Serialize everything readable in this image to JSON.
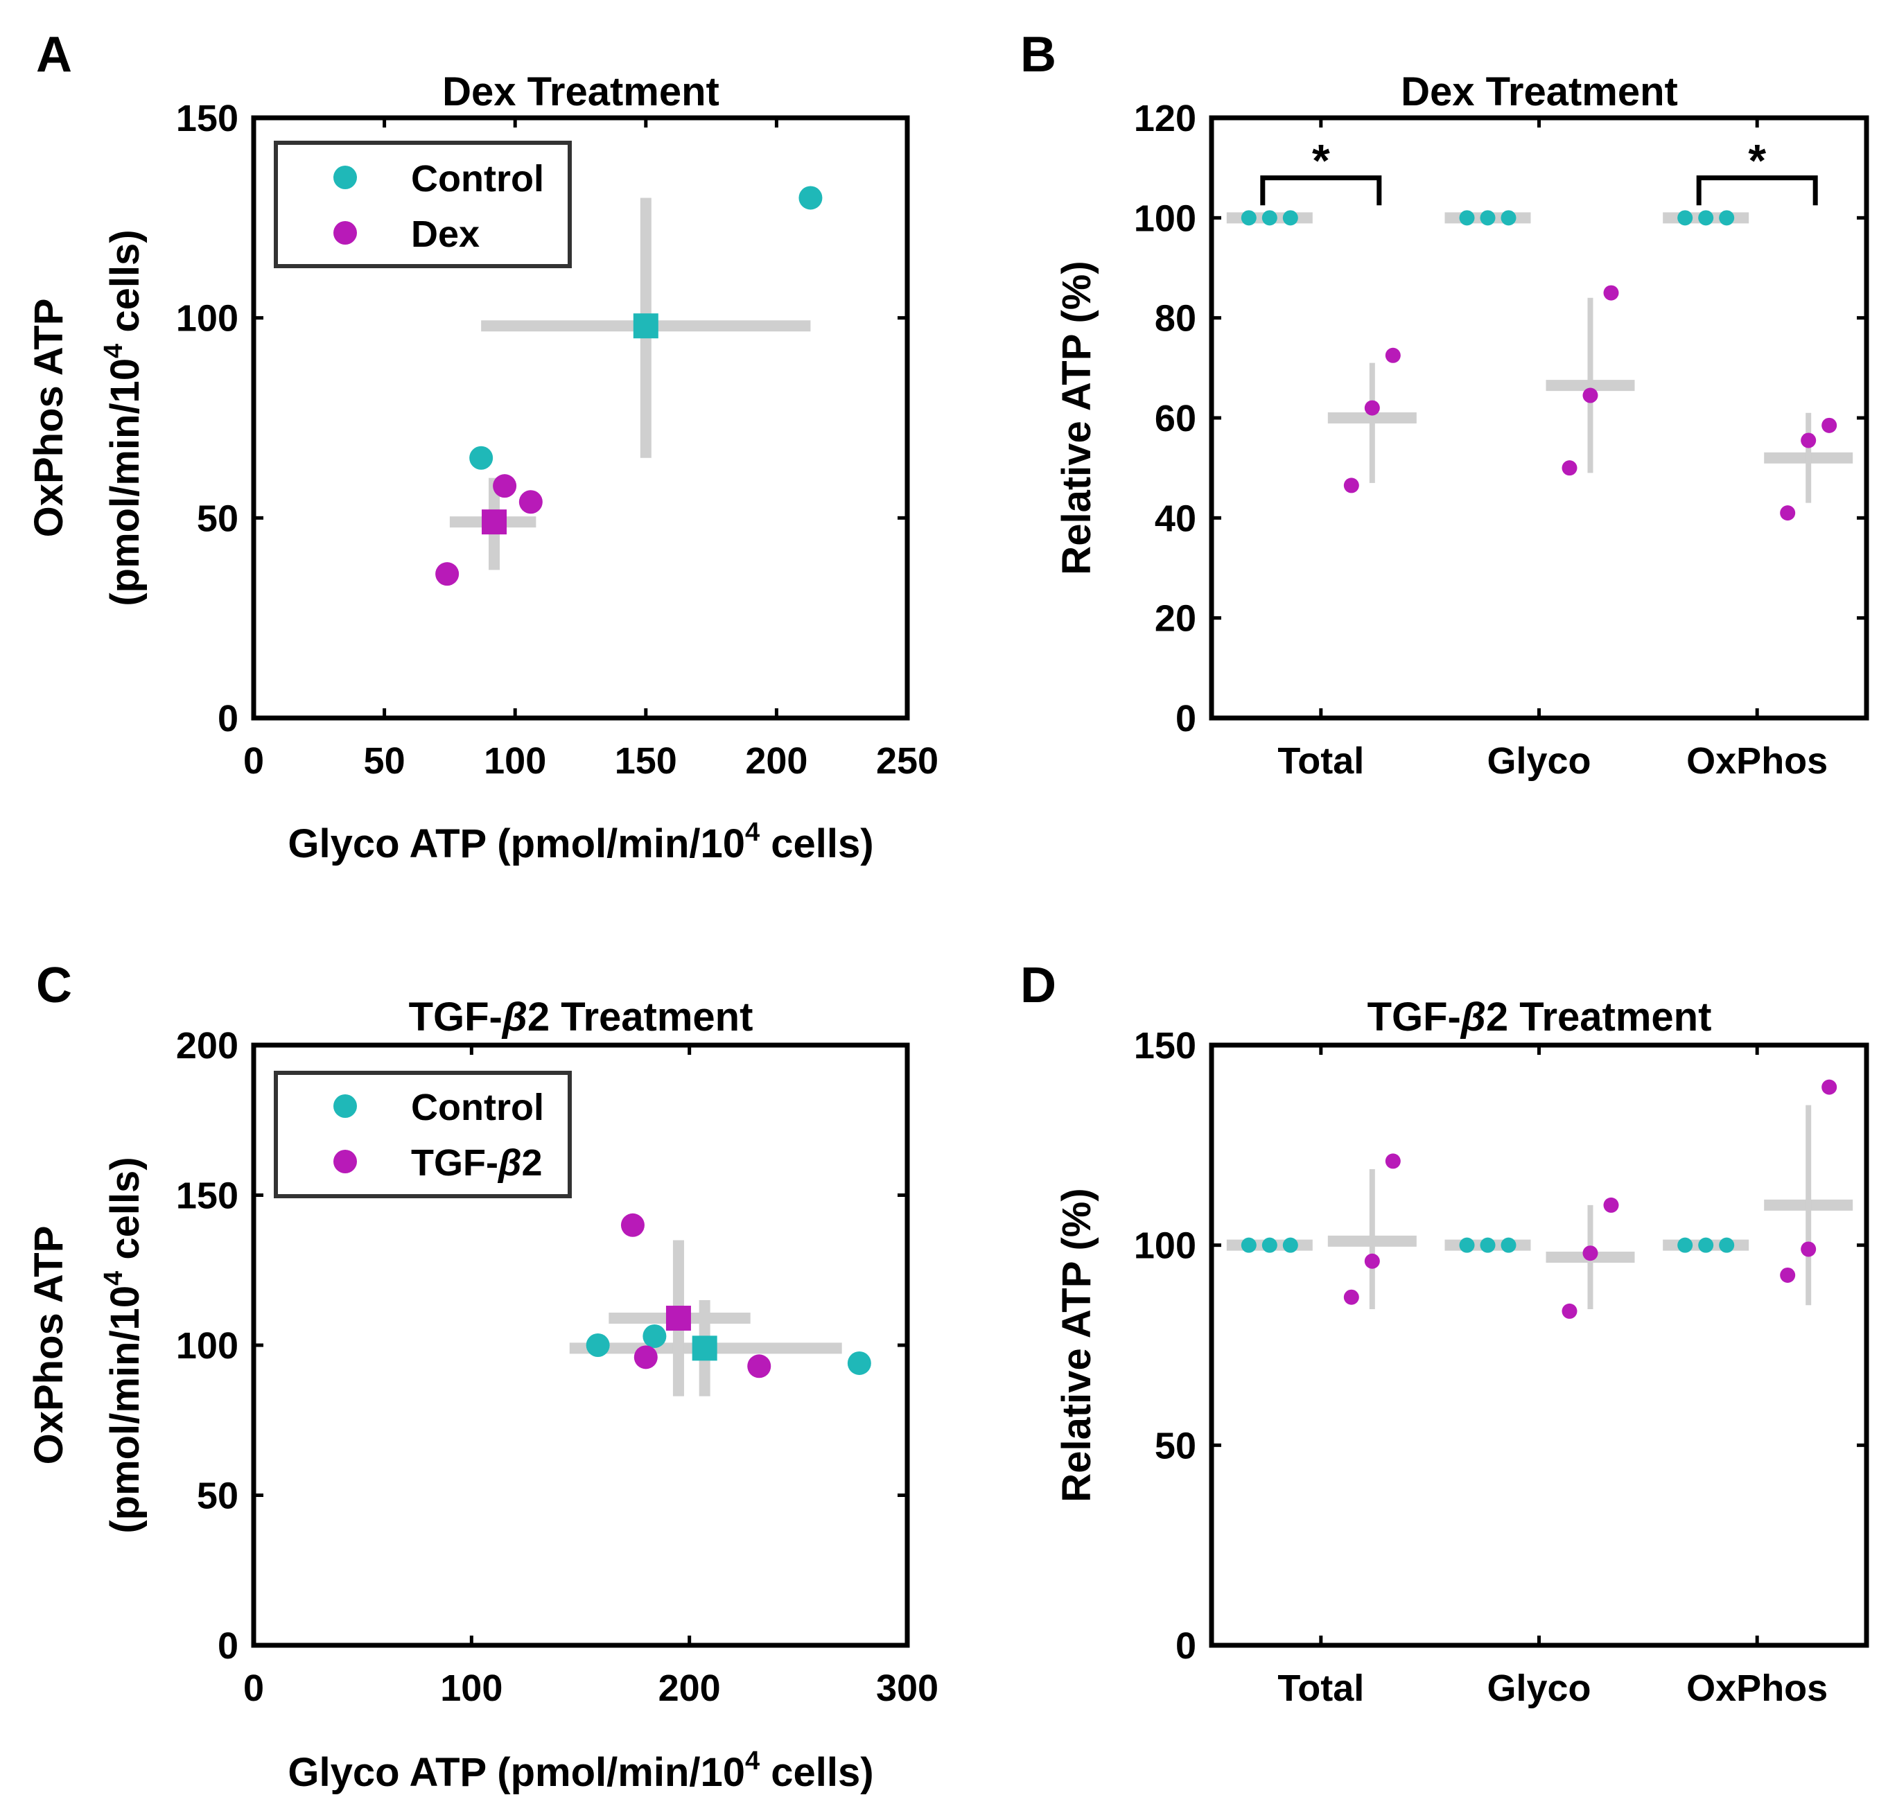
{
  "colors": {
    "control": "#1fb8b8",
    "treatment": "#b81ab8",
    "errorbar": "#cfcfcf",
    "axis": "#000000"
  },
  "chart_data": [
    {
      "panel": "A",
      "type": "scatter",
      "title": "Dex Treatment",
      "xlabel_pre": "Glyco ATP (pmol/min/10",
      "xlabel_sup": "4",
      "xlabel_post": " cells)",
      "ylabel_line1": "OxPhos ATP",
      "ylabel_pre": "(pmol/min/10",
      "ylabel_sup": "4",
      "ylabel_post": " cells)",
      "xlim": [
        0,
        250
      ],
      "ylim": [
        0,
        150
      ],
      "xticks": [
        "0",
        "50",
        "100",
        "150",
        "200",
        "250"
      ],
      "yticks": [
        "0",
        "50",
        "100",
        "150"
      ],
      "legend": [
        "Control",
        "Dex"
      ],
      "series": [
        {
          "name": "Control",
          "points": [
            [
              87,
              65
            ],
            [
              213,
              130
            ]
          ],
          "mean": [
            150,
            98
          ],
          "x_err": [
            87,
            213
          ],
          "y_err": [
            65,
            130
          ]
        },
        {
          "name": "Dex",
          "points": [
            [
              74,
              36
            ],
            [
              96,
              58
            ],
            [
              106,
              54
            ]
          ],
          "mean": [
            92,
            49
          ],
          "x_err": [
            75,
            108
          ],
          "y_err": [
            37,
            60
          ]
        }
      ]
    },
    {
      "panel": "B",
      "type": "strip",
      "title": "Dex Treatment",
      "ylabel": "Relative ATP (%)",
      "ylim": [
        0,
        120
      ],
      "yticks": [
        "0",
        "20",
        "40",
        "60",
        "80",
        "100",
        "120"
      ],
      "categories": [
        "Total",
        "Glyco",
        "OxPhos"
      ],
      "groups": [
        {
          "category": "Total",
          "control": [
            100,
            100,
            100
          ],
          "treatment": [
            46.5,
            62,
            72.5
          ],
          "mean": 60,
          "err": [
            47,
            71
          ],
          "significance": "*"
        },
        {
          "category": "Glyco",
          "control": [
            100,
            100,
            100
          ],
          "treatment": [
            50,
            64.5,
            85
          ],
          "mean": 66.5,
          "err": [
            49,
            84
          ],
          "significance": ""
        },
        {
          "category": "OxPhos",
          "control": [
            100,
            100,
            100
          ],
          "treatment": [
            41,
            55.5,
            58.5
          ],
          "mean": 52,
          "err": [
            43,
            61
          ],
          "significance": "*"
        }
      ]
    },
    {
      "panel": "C",
      "type": "scatter",
      "title_pre": "TGF-",
      "title_greek": "β",
      "title_post": "2 Treatment",
      "xlabel_pre": "Glyco ATP (pmol/min/10",
      "xlabel_sup": "4",
      "xlabel_post": " cells)",
      "ylabel_line1": "OxPhos ATP",
      "ylabel_pre": "(pmol/min/10",
      "ylabel_sup": "4",
      "ylabel_post": " cells)",
      "xlim": [
        0,
        300
      ],
      "ylim": [
        0,
        200
      ],
      "xticks": [
        "0",
        "100",
        "200",
        "300"
      ],
      "yticks": [
        "0",
        "50",
        "100",
        "150",
        "200"
      ],
      "legend_control": "Control",
      "legend_treat_pre": "TGF-",
      "legend_treat_greek": "β",
      "legend_treat_post": "2",
      "series": [
        {
          "name": "Control",
          "points": [
            [
              158,
              100
            ],
            [
              184,
              103
            ],
            [
              278,
              94
            ]
          ],
          "mean": [
            207,
            99
          ],
          "x_err": [
            145,
            270
          ],
          "y_err": [
            83,
            115
          ]
        },
        {
          "name": "TGF-β2",
          "points": [
            [
              174,
              140
            ],
            [
              180,
              96
            ],
            [
              232,
              93
            ]
          ],
          "mean": [
            195,
            109
          ],
          "x_err": [
            163,
            228
          ],
          "y_err": [
            83,
            135
          ]
        }
      ]
    },
    {
      "panel": "D",
      "type": "strip",
      "title_pre": "TGF-",
      "title_greek": "β",
      "title_post": "2 Treatment",
      "ylabel": "Relative ATP (%)",
      "ylim": [
        0,
        150
      ],
      "yticks": [
        "0",
        "50",
        "100",
        "150"
      ],
      "categories": [
        "Total",
        "Glyco",
        "OxPhos"
      ],
      "groups": [
        {
          "category": "Total",
          "control": [
            100,
            100,
            100
          ],
          "treatment": [
            87,
            96,
            121
          ],
          "mean": 101,
          "err": [
            84,
            119
          ],
          "significance": ""
        },
        {
          "category": "Glyco",
          "control": [
            100,
            100,
            100
          ],
          "treatment": [
            83.5,
            98,
            110
          ],
          "mean": 97,
          "err": [
            84,
            110
          ],
          "significance": ""
        },
        {
          "category": "OxPhos",
          "control": [
            100,
            100,
            100
          ],
          "treatment": [
            92.5,
            99,
            139.5
          ],
          "mean": 110,
          "err": [
            85,
            135
          ],
          "significance": ""
        }
      ]
    }
  ]
}
